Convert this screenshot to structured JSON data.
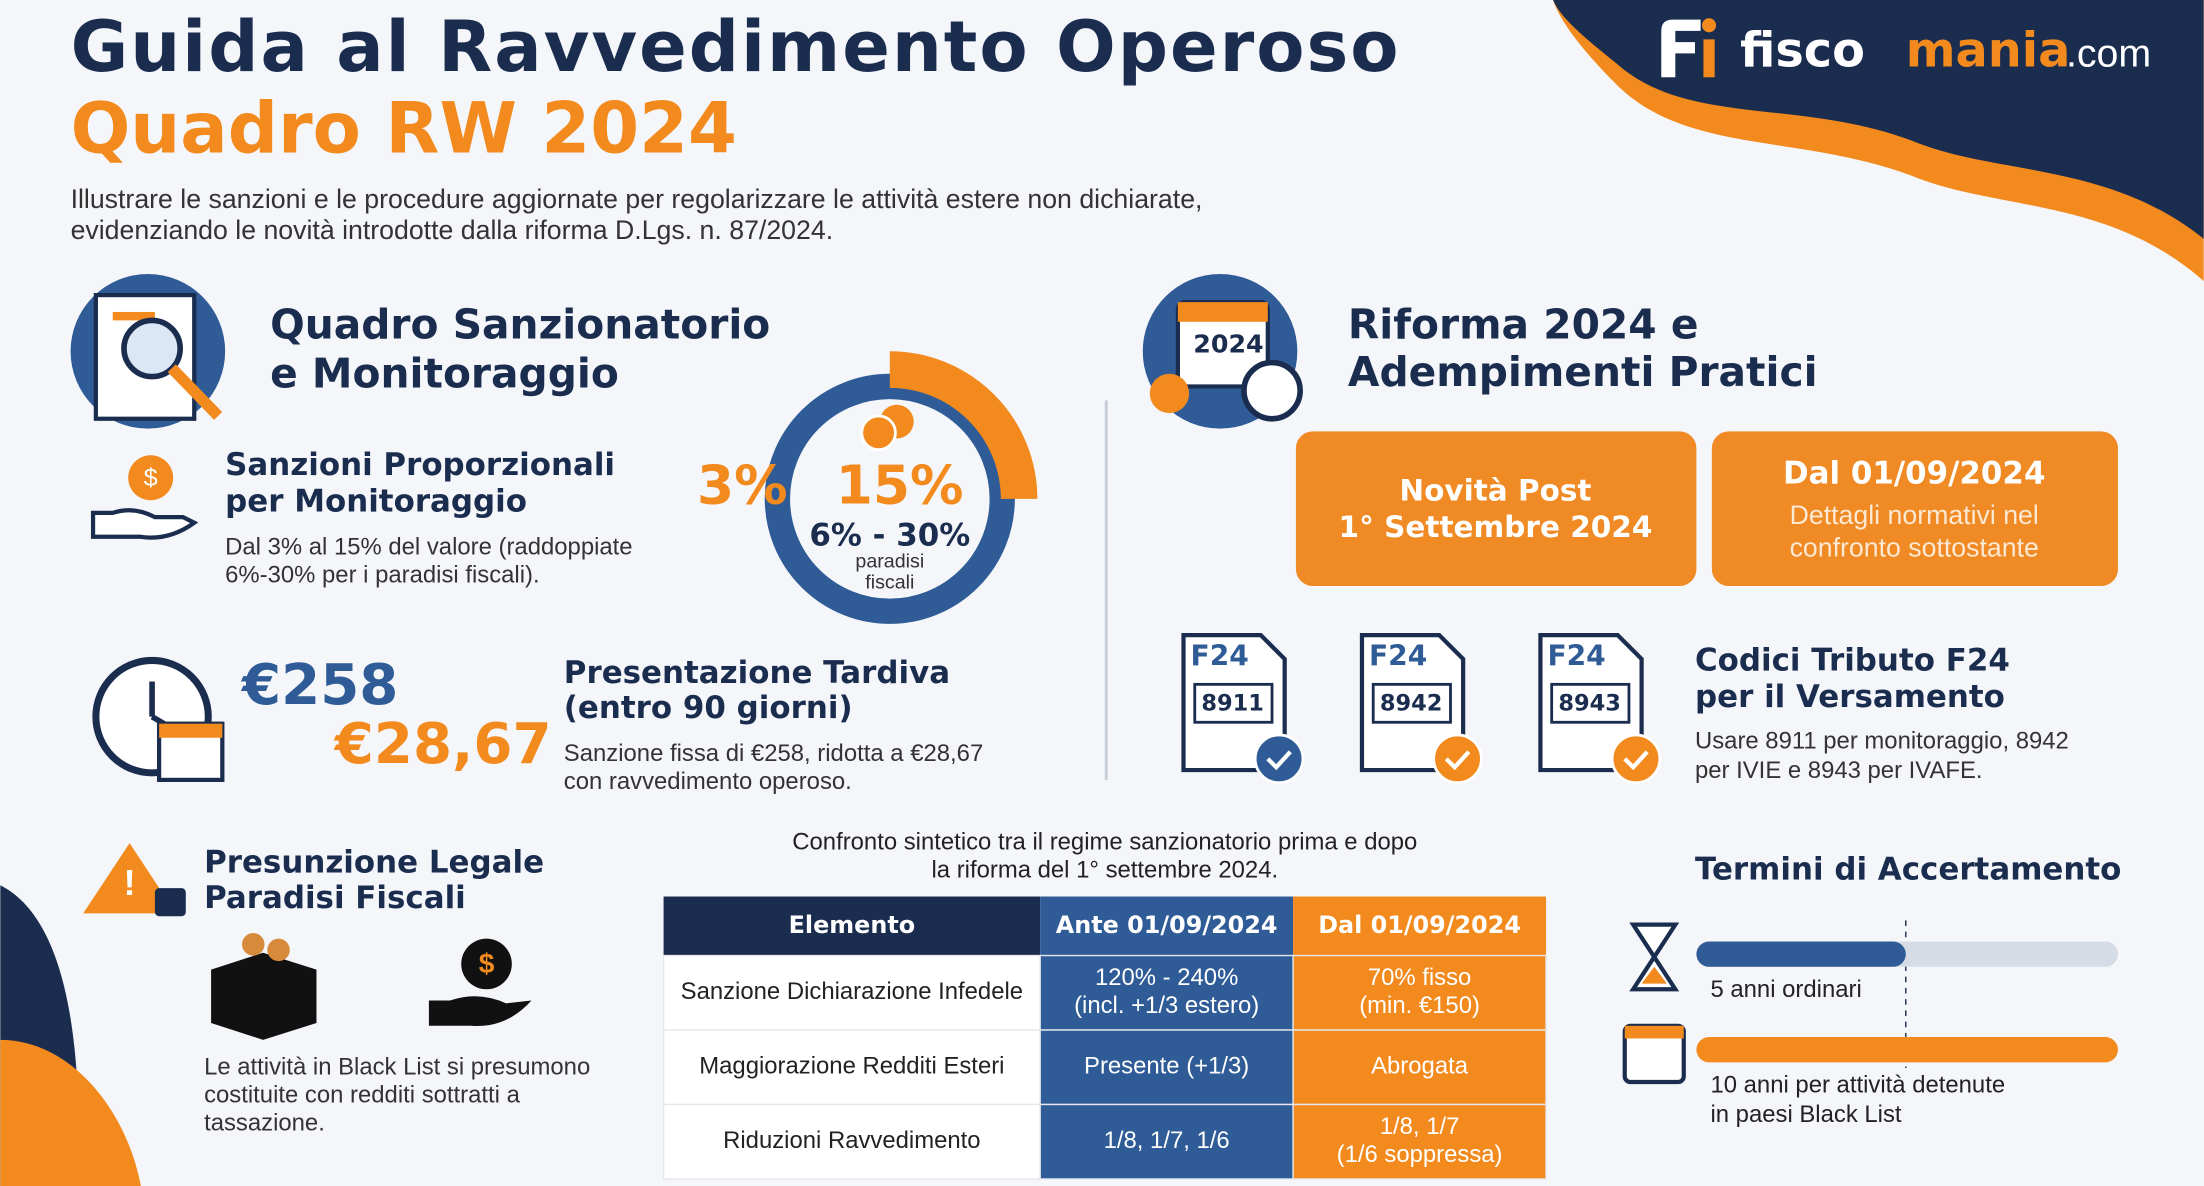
{
  "logo": {
    "brand_a": "fisco",
    "brand_b": "mania",
    "domain": ".com"
  },
  "header": {
    "title": "Guida al Ravvedimento Operoso",
    "subtitle": "Quadro RW 2024",
    "description": [
      "Illustrare le sanzioni e le procedure aggiornate per regolarizzare le attività estere non dichiarate,",
      "evidenziando le novità introdotte dalla riforma D.Lgs. n. 87/2024."
    ]
  },
  "left_section": {
    "title": [
      "Quadro Sanzionatorio",
      "e Monitoraggio"
    ],
    "proportional": {
      "title": [
        "Sanzioni Proporzionali",
        "per Monitoraggio"
      ],
      "text": [
        "Dal 3% al 15% del valore (raddoppiate",
        "6%-30% per i paradisi fiscali)."
      ]
    },
    "donut": {
      "min": "3%",
      "max": "15%",
      "range": "6% - 30%",
      "note": [
        "paradisi",
        "fiscali"
      ]
    },
    "late": {
      "amount_a": "€258",
      "amount_b": "€28,67",
      "title": [
        "Presentazione Tardiva",
        "(entro 90 giorni)"
      ],
      "text": [
        "Sanzione fissa di €258, ridotta a €28,67",
        "con ravvedimento operoso."
      ]
    },
    "blacklist": {
      "title": [
        "Presunzione Legale",
        "Paradisi Fiscali"
      ],
      "text": [
        "Le attività in Black List si presumono",
        "costituite con redditi sottratti a",
        "tassazione."
      ]
    }
  },
  "right_section": {
    "title": [
      "Riforma 2024 e",
      "Adempimenti Pratici"
    ],
    "badge": "2024",
    "card_a": [
      "Novità Post",
      "1° Settembre 2024"
    ],
    "card_b": {
      "title": "Dal 01/09/2024",
      "lines": [
        "Dettagli normativi nel",
        "confronto sottostante"
      ]
    },
    "f24": {
      "doc_label": "F24",
      "codes": [
        "8911",
        "8942",
        "8943"
      ],
      "title": [
        "Codici Tributo F24",
        "per il Versamento"
      ],
      "text": [
        "Usare 8911 per monitoraggio, 8942",
        "per IVIE e 8943 per IVAFE."
      ]
    }
  },
  "comparison": {
    "caption": [
      "Confronto sintetico tra il regime sanzionatorio prima e dopo",
      "la riforma del 1° settembre 2024."
    ],
    "headers": [
      "Elemento",
      "Ante 01/09/2024",
      "Dal 01/09/2024"
    ],
    "rows": [
      [
        [
          "Sanzione Dichiarazione Infedele"
        ],
        [
          "120% - 240%",
          "(incl. +1/3 estero)"
        ],
        [
          "70% fisso",
          "(min. €150)"
        ]
      ],
      [
        [
          "Maggiorazione Redditi Esteri"
        ],
        [
          "Presente (+1/3)"
        ],
        [
          "Abrogata"
        ]
      ],
      [
        [
          "Riduzioni Ravvedimento"
        ],
        [
          "1/8, 1/7, 1/6"
        ],
        [
          "1/8, 1/7",
          "(1/6 soppressa)"
        ]
      ]
    ]
  },
  "terms": {
    "title": "Termini di Accertamento",
    "items": [
      [
        "5 anni ordinari"
      ],
      [
        "10 anni per attività detenute",
        "in paesi Black List"
      ]
    ]
  }
}
